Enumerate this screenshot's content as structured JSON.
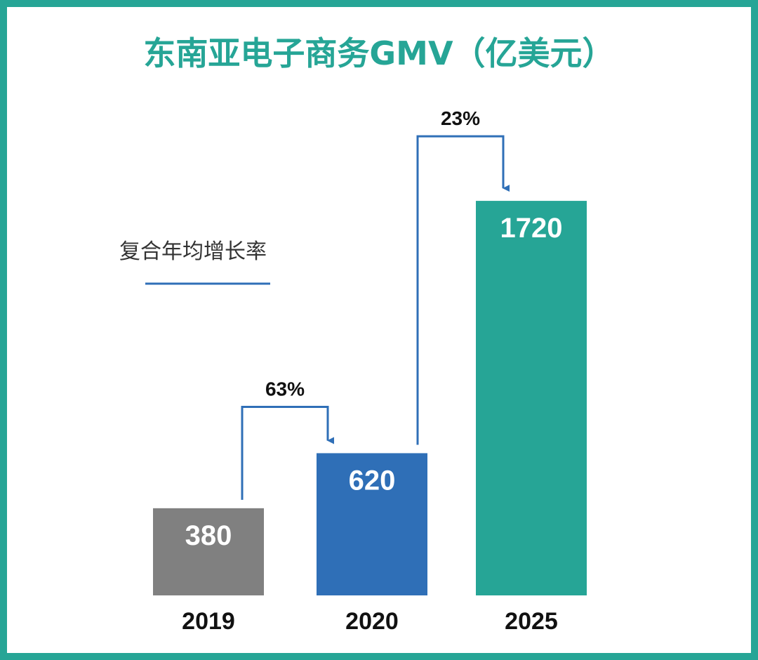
{
  "chart_data": {
    "type": "bar",
    "title": "东南亚电子商务GMV（亿美元）",
    "categories": [
      "2019",
      "2020",
      "2025"
    ],
    "values": [
      380,
      620,
      1720
    ],
    "value_labels": [
      "380",
      "620",
      "1720"
    ],
    "bar_colors": [
      "#808080",
      "#2f6fb7",
      "#26a596"
    ],
    "growth_annotations": [
      {
        "from": "2019",
        "to": "2020",
        "label": "63%"
      },
      {
        "from": "2020",
        "to": "2025",
        "label": "23%"
      }
    ],
    "legend": {
      "label": "复合年均增长率",
      "color": "#2f6fb7",
      "position": "left"
    },
    "grid": false
  },
  "colors": {
    "accent": "#26a596",
    "arrow": "#2f6fb7"
  }
}
